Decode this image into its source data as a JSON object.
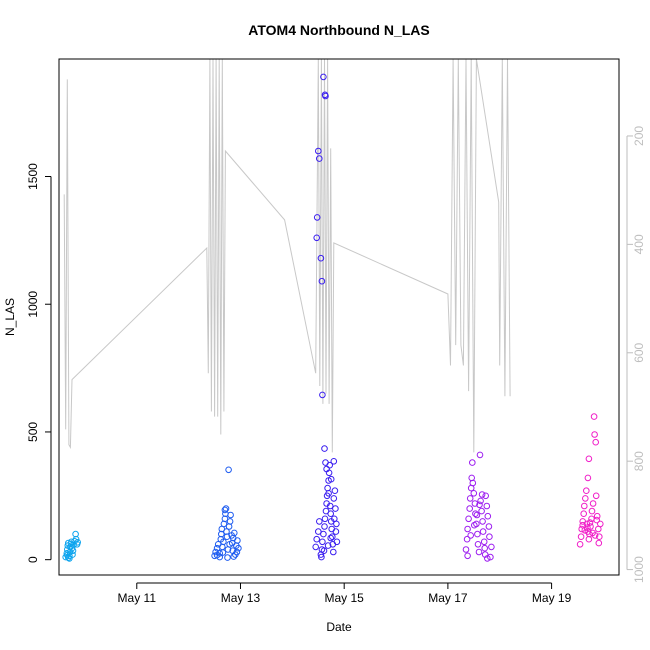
{
  "chart_data": {
    "type": "scatter",
    "title": "ATOM4 Northbound N_LAS",
    "xlabel": "Date",
    "ylabel": "N_LAS",
    "x_ticks": [
      "May 11",
      "May 13",
      "May 15",
      "May 17",
      "May 19"
    ],
    "x_tick_values": [
      11,
      13,
      15,
      17,
      19
    ],
    "xlim": [
      9.5,
      20.3
    ],
    "ylim": [
      -60,
      1960
    ],
    "y_ticks": [
      0,
      500,
      1000,
      1500
    ],
    "y2_ticks": [
      200,
      400,
      600,
      800,
      1000
    ],
    "y2_lim": [
      1010,
      58
    ],
    "y2_reversed": true,
    "grid": false,
    "colors": {
      "axis": "#000000",
      "secondary_axis": "#bebebe",
      "line": "#c8c8c8",
      "point_day1": "#0da4ee",
      "point_day2": "#1e5cf0",
      "point_day3": "#3a1ef0",
      "point_day4": "#9d1ef0",
      "point_day5": "#f01ec8"
    },
    "point_groups": [
      {
        "color_key": "point_day1",
        "points": [
          [
            9.63,
            10
          ],
          [
            9.65,
            25
          ],
          [
            9.66,
            40
          ],
          [
            9.67,
            55
          ],
          [
            9.68,
            65
          ],
          [
            9.7,
            15
          ],
          [
            9.71,
            30
          ],
          [
            9.72,
            50
          ],
          [
            9.73,
            62
          ],
          [
            9.74,
            70
          ],
          [
            9.75,
            45
          ],
          [
            9.76,
            20
          ],
          [
            9.77,
            35
          ],
          [
            9.78,
            58
          ],
          [
            9.8,
            72
          ],
          [
            9.82,
            100
          ],
          [
            9.83,
            80
          ],
          [
            9.85,
            60
          ],
          [
            9.86,
            68
          ],
          [
            9.7,
            5
          ],
          [
            9.68,
            8
          ],
          [
            9.66,
            18
          ]
        ]
      },
      {
        "color_key": "point_day2",
        "points": [
          [
            12.5,
            15
          ],
          [
            12.52,
            30
          ],
          [
            12.55,
            45
          ],
          [
            12.57,
            60
          ],
          [
            12.6,
            25
          ],
          [
            12.62,
            80
          ],
          [
            12.63,
            100
          ],
          [
            12.64,
            120
          ],
          [
            12.65,
            50
          ],
          [
            12.67,
            70
          ],
          [
            12.68,
            140
          ],
          [
            12.7,
            160
          ],
          [
            12.71,
            180
          ],
          [
            12.72,
            200
          ],
          [
            12.73,
            110
          ],
          [
            12.74,
            90
          ],
          [
            12.76,
            40
          ],
          [
            12.77,
            352
          ],
          [
            12.78,
            130
          ],
          [
            12.8,
            150
          ],
          [
            12.81,
            175
          ],
          [
            12.83,
            95
          ],
          [
            12.84,
            65
          ],
          [
            12.85,
            35
          ],
          [
            12.86,
            85
          ],
          [
            12.88,
            105
          ],
          [
            12.9,
            20
          ],
          [
            12.92,
            55
          ],
          [
            12.94,
            75
          ],
          [
            12.96,
            45
          ],
          [
            12.6,
            10
          ],
          [
            12.55,
            18
          ],
          [
            12.66,
            28
          ],
          [
            12.75,
            8
          ],
          [
            12.87,
            12
          ],
          [
            12.93,
            30
          ],
          [
            12.7,
            195
          ],
          [
            12.79,
            60
          ]
        ]
      },
      {
        "color_key": "point_day3",
        "points": [
          [
            14.55,
            20
          ],
          [
            14.57,
            40
          ],
          [
            14.58,
            70
          ],
          [
            14.6,
            100
          ],
          [
            14.6,
            1890
          ],
          [
            14.62,
            130
          ],
          [
            14.63,
            160
          ],
          [
            14.63,
            1820
          ],
          [
            14.64,
            1815
          ],
          [
            14.65,
            190
          ],
          [
            14.66,
            220
          ],
          [
            14.67,
            250
          ],
          [
            14.68,
            280
          ],
          [
            14.7,
            310
          ],
          [
            14.71,
            340
          ],
          [
            14.72,
            370
          ],
          [
            14.73,
            210
          ],
          [
            14.74,
            180
          ],
          [
            14.75,
            150
          ],
          [
            14.76,
            120
          ],
          [
            14.77,
            90
          ],
          [
            14.78,
            60
          ],
          [
            14.79,
            30
          ],
          [
            14.8,
            240
          ],
          [
            14.82,
            270
          ],
          [
            14.83,
            200
          ],
          [
            14.85,
            140
          ],
          [
            14.5,
            1600
          ],
          [
            14.52,
            1570
          ],
          [
            14.48,
            1340
          ],
          [
            14.47,
            1260
          ],
          [
            14.55,
            1180
          ],
          [
            14.57,
            1090
          ],
          [
            14.58,
            645
          ],
          [
            14.62,
            435
          ],
          [
            14.64,
            380
          ],
          [
            14.66,
            355
          ],
          [
            14.7,
            260
          ],
          [
            14.75,
            315
          ],
          [
            14.8,
            385
          ],
          [
            14.45,
            50
          ],
          [
            14.47,
            80
          ],
          [
            14.5,
            110
          ],
          [
            14.52,
            150
          ],
          [
            14.56,
            10
          ],
          [
            14.61,
            35
          ],
          [
            14.69,
            55
          ],
          [
            14.74,
            85
          ],
          [
            14.81,
            160
          ],
          [
            14.84,
            110
          ],
          [
            14.86,
            70
          ]
        ]
      },
      {
        "color_key": "point_day4",
        "points": [
          [
            17.35,
            40
          ],
          [
            17.37,
            80
          ],
          [
            17.38,
            120
          ],
          [
            17.4,
            160
          ],
          [
            17.42,
            200
          ],
          [
            17.43,
            240
          ],
          [
            17.45,
            280
          ],
          [
            17.46,
            320
          ],
          [
            17.47,
            380
          ],
          [
            17.48,
            300
          ],
          [
            17.5,
            260
          ],
          [
            17.52,
            220
          ],
          [
            17.53,
            180
          ],
          [
            17.55,
            140
          ],
          [
            17.57,
            100
          ],
          [
            17.58,
            60
          ],
          [
            17.6,
            30
          ],
          [
            17.62,
            410
          ],
          [
            17.63,
            230
          ],
          [
            17.65,
            190
          ],
          [
            17.67,
            150
          ],
          [
            17.68,
            110
          ],
          [
            17.7,
            70
          ],
          [
            17.72,
            20
          ],
          [
            17.73,
            250
          ],
          [
            17.75,
            210
          ],
          [
            17.77,
            170
          ],
          [
            17.79,
            130
          ],
          [
            17.8,
            90
          ],
          [
            17.82,
            10
          ],
          [
            17.84,
            50
          ],
          [
            17.38,
            15
          ],
          [
            17.44,
            95
          ],
          [
            17.51,
            135
          ],
          [
            17.56,
            175
          ],
          [
            17.61,
            215
          ],
          [
            17.66,
            255
          ],
          [
            17.71,
            45
          ],
          [
            17.76,
            5
          ]
        ]
      },
      {
        "color_key": "point_day5",
        "points": [
          [
            19.55,
            60
          ],
          [
            19.57,
            90
          ],
          [
            19.58,
            120
          ],
          [
            19.6,
            150
          ],
          [
            19.62,
            180
          ],
          [
            19.63,
            210
          ],
          [
            19.65,
            240
          ],
          [
            19.67,
            270
          ],
          [
            19.68,
            140
          ],
          [
            19.7,
            110
          ],
          [
            19.72,
            80
          ],
          [
            19.73,
            100
          ],
          [
            19.75,
            130
          ],
          [
            19.77,
            160
          ],
          [
            19.78,
            190
          ],
          [
            19.8,
            220
          ],
          [
            19.82,
            560
          ],
          [
            19.83,
            490
          ],
          [
            19.85,
            460
          ],
          [
            19.86,
            250
          ],
          [
            19.88,
            170
          ],
          [
            19.9,
            120
          ],
          [
            19.92,
            90
          ],
          [
            19.94,
            140
          ],
          [
            19.7,
            320
          ],
          [
            19.72,
            395
          ],
          [
            19.6,
            135
          ],
          [
            19.64,
            115
          ],
          [
            19.69,
            125
          ],
          [
            19.74,
            145
          ],
          [
            19.79,
            105
          ],
          [
            19.84,
            95
          ],
          [
            19.87,
            155
          ],
          [
            19.91,
            65
          ]
        ]
      }
    ],
    "line_series": [
      [
        9.6,
        1430
      ],
      [
        9.63,
        510
      ],
      [
        9.66,
        1880
      ],
      [
        9.69,
        450
      ],
      [
        9.72,
        440
      ],
      [
        9.75,
        705
      ],
      [
        12.35,
        1220
      ],
      [
        12.38,
        730
      ],
      [
        12.41,
        1960
      ],
      [
        12.44,
        580
      ],
      [
        12.47,
        1960
      ],
      [
        12.5,
        560
      ],
      [
        12.53,
        1960
      ],
      [
        12.56,
        560
      ],
      [
        12.59,
        1960
      ],
      [
        12.62,
        490
      ],
      [
        12.65,
        1960
      ],
      [
        12.68,
        580
      ],
      [
        12.71,
        1600
      ],
      [
        13.85,
        1330
      ],
      [
        14.45,
        730
      ],
      [
        14.5,
        1960
      ],
      [
        14.53,
        680
      ],
      [
        14.56,
        1960
      ],
      [
        14.59,
        610
      ],
      [
        14.62,
        1960
      ],
      [
        14.65,
        650
      ],
      [
        14.68,
        1960
      ],
      [
        14.71,
        610
      ],
      [
        14.74,
        1610
      ],
      [
        14.77,
        420
      ],
      [
        14.8,
        1240
      ],
      [
        17.0,
        1040
      ],
      [
        17.05,
        760
      ],
      [
        17.1,
        1960
      ],
      [
        17.15,
        840
      ],
      [
        17.2,
        1960
      ],
      [
        17.25,
        840
      ],
      [
        17.3,
        760
      ],
      [
        17.35,
        1960
      ],
      [
        17.4,
        660
      ],
      [
        17.45,
        1960
      ],
      [
        17.5,
        420
      ],
      [
        17.55,
        1960
      ],
      [
        17.98,
        1400
      ],
      [
        18.0,
        760
      ],
      [
        18.05,
        1960
      ],
      [
        18.1,
        640
      ],
      [
        18.15,
        1960
      ],
      [
        18.2,
        640
      ]
    ]
  }
}
